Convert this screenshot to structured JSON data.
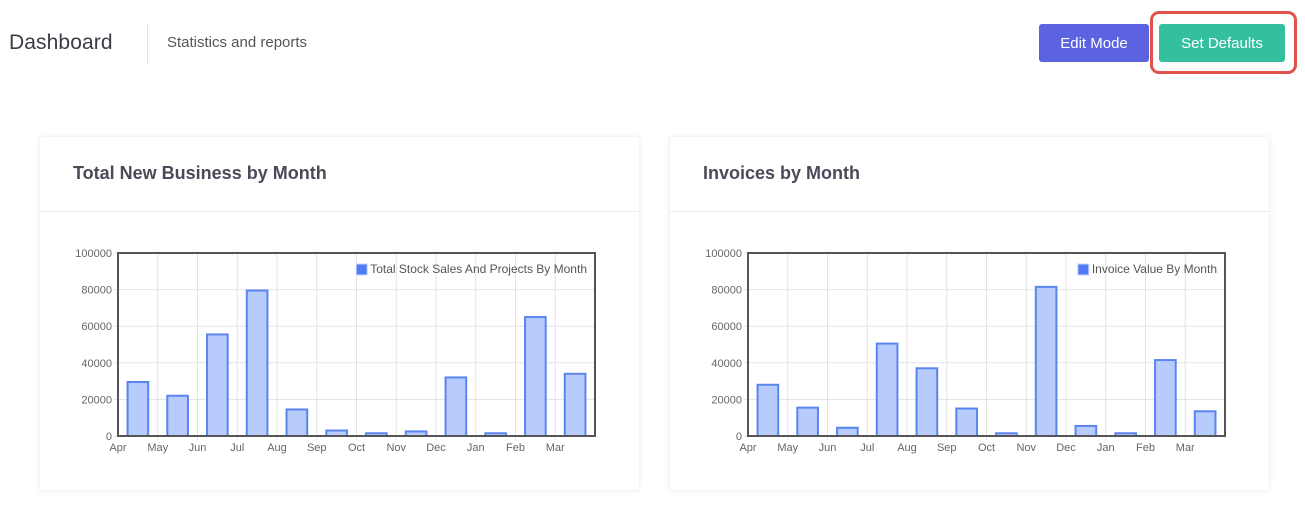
{
  "header": {
    "title": "Dashboard",
    "subtitle": "Statistics and reports",
    "edit_mode_label": "Edit Mode",
    "set_defaults_label": "Set Defaults"
  },
  "colors": {
    "edit_button": "#5b63e0",
    "defaults_button": "#34bf9f",
    "highlight": "#e0524a",
    "bar_fill": "#b8cbfd",
    "bar_stroke": "#5a84f0"
  },
  "chart_data": [
    {
      "type": "bar",
      "title": "Total New Business by Month",
      "categories": [
        "Apr",
        "May",
        "Jun",
        "Jul",
        "Aug",
        "Sep",
        "Oct",
        "Nov",
        "Dec",
        "Jan",
        "Feb",
        "Mar"
      ],
      "series": [
        {
          "name": "Total Stock Sales And Projects By Month",
          "values": [
            29500,
            22000,
            55500,
            79500,
            14500,
            3000,
            1500,
            2500,
            32000,
            1500,
            65000,
            34000
          ]
        }
      ],
      "ylim": [
        0,
        100000
      ],
      "yticks": [
        "100000",
        "80000",
        "60000",
        "40000",
        "20000",
        "0"
      ],
      "legend": "top-right",
      "grid": true
    },
    {
      "type": "bar",
      "title": "Invoices by Month",
      "categories": [
        "Apr",
        "May",
        "Jun",
        "Jul",
        "Aug",
        "Sep",
        "Oct",
        "Nov",
        "Dec",
        "Jan",
        "Feb",
        "Mar"
      ],
      "series": [
        {
          "name": "Invoice Value By Month",
          "values": [
            28000,
            15500,
            4500,
            50500,
            37000,
            15000,
            1500,
            81500,
            5500,
            1500,
            41500,
            13500
          ]
        }
      ],
      "ylim": [
        0,
        100000
      ],
      "yticks": [
        "100000",
        "80000",
        "60000",
        "40000",
        "20000",
        "0"
      ],
      "legend": "top-right",
      "grid": true
    }
  ]
}
